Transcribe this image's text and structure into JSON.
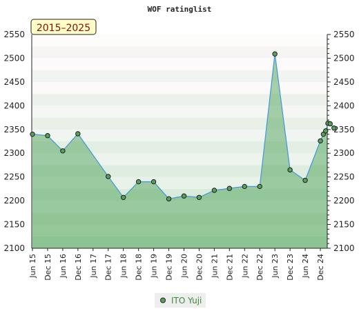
{
  "chart_data": {
    "type": "area",
    "title": "WOF ratinglist",
    "period_label": "2015–2025",
    "xlabel": "",
    "ylabel": "",
    "ylim": [
      2100,
      2550
    ],
    "yticks": [
      2100,
      2150,
      2200,
      2250,
      2300,
      2350,
      2400,
      2450,
      2500,
      2550
    ],
    "xtick_labels": [
      "Jun 15",
      "Dec 15",
      "Jun 16",
      "Dec 16",
      "Jun 17",
      "Dec 17",
      "Jun 18",
      "Dec 18",
      "Jun 19",
      "Dec 19",
      "Jun 20",
      "Dec 20",
      "Jun 21",
      "Dec 21",
      "Jun 22",
      "Dec 22",
      "Jun 23",
      "Dec 23",
      "Jun 24",
      "Dec 24"
    ],
    "legend_position": "bottom-center",
    "series": [
      {
        "name": "ITO Yuji",
        "color": "#4a9ad8",
        "marker_color": "#5aa05a",
        "points": [
          {
            "x": 0,
            "y": 2340
          },
          {
            "x": 1,
            "y": 2337
          },
          {
            "x": 2,
            "y": 2305
          },
          {
            "x": 3,
            "y": 2341
          },
          {
            "x": 5,
            "y": 2251
          },
          {
            "x": 6,
            "y": 2207
          },
          {
            "x": 7,
            "y": 2240
          },
          {
            "x": 8,
            "y": 2240
          },
          {
            "x": 9,
            "y": 2204
          },
          {
            "x": 10,
            "y": 2210
          },
          {
            "x": 11,
            "y": 2207
          },
          {
            "x": 12,
            "y": 2222
          },
          {
            "x": 13,
            "y": 2226
          },
          {
            "x": 14,
            "y": 2230
          },
          {
            "x": 15,
            "y": 2230
          },
          {
            "x": 16,
            "y": 2509
          },
          {
            "x": 17,
            "y": 2265
          },
          {
            "x": 18,
            "y": 2243
          },
          {
            "x": 19,
            "y": 2326
          },
          {
            "x": 19.2,
            "y": 2340
          },
          {
            "x": 19.35,
            "y": 2347
          },
          {
            "x": 19.5,
            "y": 2363
          },
          {
            "x": 19.65,
            "y": 2362
          },
          {
            "x": 19.9,
            "y": 2353
          }
        ]
      }
    ]
  }
}
